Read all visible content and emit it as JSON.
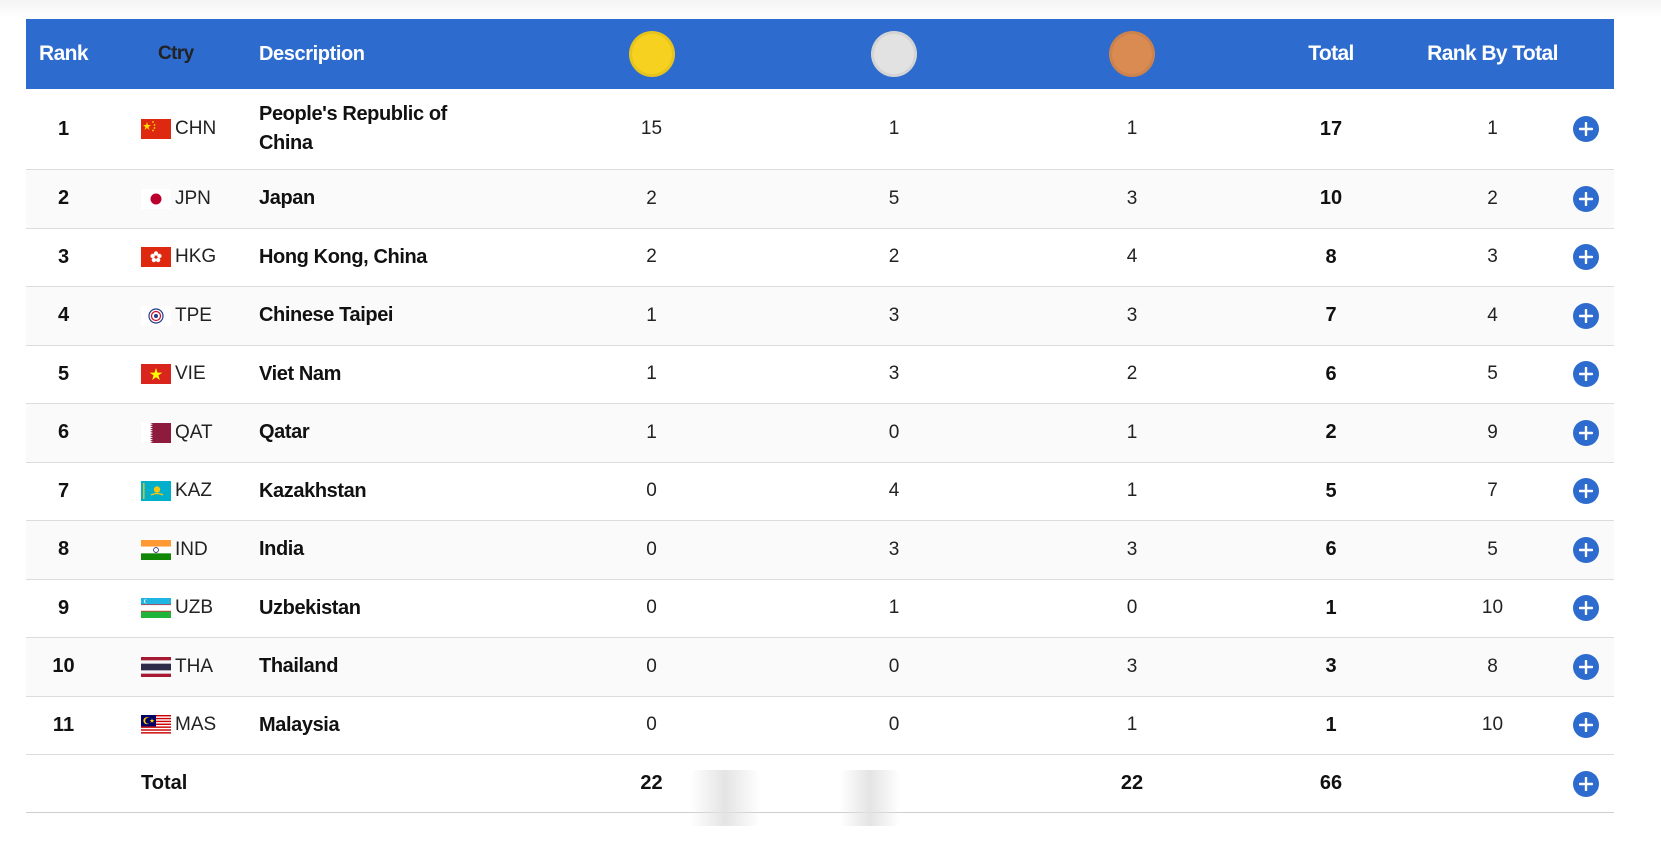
{
  "header": {
    "rank": "Rank",
    "ctry": "Ctry",
    "description": "Description",
    "total": "Total",
    "rank_by_total": "Rank By Total",
    "medal_colors": {
      "gold": "#f6d11f",
      "silver": "#e2e2e2",
      "bronze": "#d98b52"
    }
  },
  "accent_color": "#2d6bce",
  "rows": [
    {
      "rank": "1",
      "code": "CHN",
      "flag_icon": "china-flag-icon",
      "name": "People's Republic of China",
      "gold": "15",
      "silver": "1",
      "bronze": "1",
      "total": "17",
      "rank_by_total": "1"
    },
    {
      "rank": "2",
      "code": "JPN",
      "flag_icon": "japan-flag-icon",
      "name": "Japan",
      "gold": "2",
      "silver": "5",
      "bronze": "3",
      "total": "10",
      "rank_by_total": "2"
    },
    {
      "rank": "3",
      "code": "HKG",
      "flag_icon": "hong-kong-flag-icon",
      "name": "Hong Kong, China",
      "gold": "2",
      "silver": "2",
      "bronze": "4",
      "total": "8",
      "rank_by_total": "3"
    },
    {
      "rank": "4",
      "code": "TPE",
      "flag_icon": "chinese-taipei-flag-icon",
      "name": "Chinese Taipei",
      "gold": "1",
      "silver": "3",
      "bronze": "3",
      "total": "7",
      "rank_by_total": "4"
    },
    {
      "rank": "5",
      "code": "VIE",
      "flag_icon": "vietnam-flag-icon",
      "name": "Viet Nam",
      "gold": "1",
      "silver": "3",
      "bronze": "2",
      "total": "6",
      "rank_by_total": "5"
    },
    {
      "rank": "6",
      "code": "QAT",
      "flag_icon": "qatar-flag-icon",
      "name": "Qatar",
      "gold": "1",
      "silver": "0",
      "bronze": "1",
      "total": "2",
      "rank_by_total": "9"
    },
    {
      "rank": "7",
      "code": "KAZ",
      "flag_icon": "kazakhstan-flag-icon",
      "name": "Kazakhstan",
      "gold": "0",
      "silver": "4",
      "bronze": "1",
      "total": "5",
      "rank_by_total": "7"
    },
    {
      "rank": "8",
      "code": "IND",
      "flag_icon": "india-flag-icon",
      "name": "India",
      "gold": "0",
      "silver": "3",
      "bronze": "3",
      "total": "6",
      "rank_by_total": "5"
    },
    {
      "rank": "9",
      "code": "UZB",
      "flag_icon": "uzbekistan-flag-icon",
      "name": "Uzbekistan",
      "gold": "0",
      "silver": "1",
      "bronze": "0",
      "total": "1",
      "rank_by_total": "10"
    },
    {
      "rank": "10",
      "code": "THA",
      "flag_icon": "thailand-flag-icon",
      "name": "Thailand",
      "gold": "0",
      "silver": "0",
      "bronze": "3",
      "total": "3",
      "rank_by_total": "8"
    },
    {
      "rank": "11",
      "code": "MAS",
      "flag_icon": "malaysia-flag-icon",
      "name": "Malaysia",
      "gold": "0",
      "silver": "0",
      "bronze": "1",
      "total": "1",
      "rank_by_total": "10"
    }
  ],
  "totals": {
    "label": "Total",
    "gold": "22",
    "silver": "",
    "bronze": "22",
    "total": "66"
  }
}
